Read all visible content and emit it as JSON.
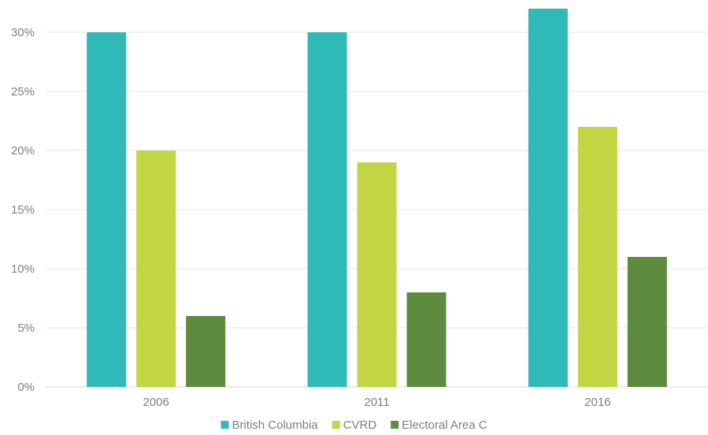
{
  "chart_data": {
    "type": "bar",
    "categories": [
      "2006",
      "2011",
      "2016"
    ],
    "series": [
      {
        "name": "British Columbia",
        "values": [
          30,
          30,
          32
        ],
        "color": "#2fbab8"
      },
      {
        "name": "CVRD",
        "values": [
          20,
          19,
          22
        ],
        "color": "#c2d643"
      },
      {
        "name": "Electoral Area C",
        "values": [
          6,
          8,
          11
        ],
        "color": "#5e8c3e"
      }
    ],
    "y_ticks": [
      "0%",
      "5%",
      "10%",
      "15%",
      "20%",
      "25%",
      "30%"
    ],
    "ylim": [
      0,
      32
    ],
    "y_unit": "%",
    "grid": true,
    "legend_position": "bottom"
  }
}
